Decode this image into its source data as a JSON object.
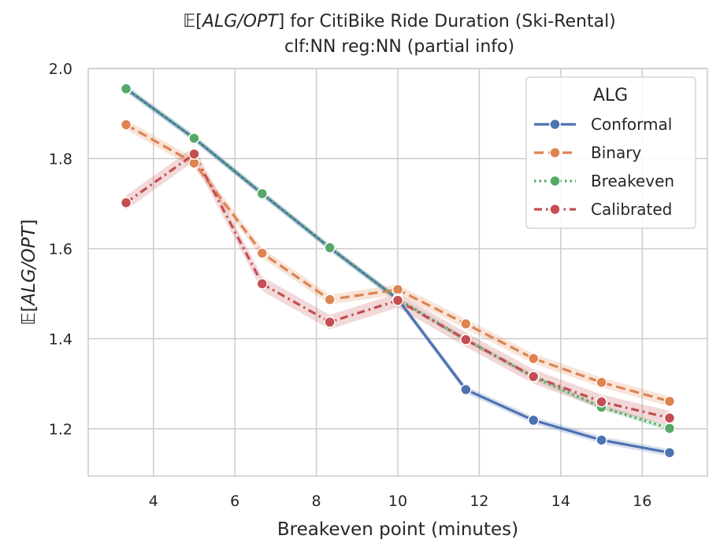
{
  "chart_data": {
    "type": "line",
    "title_main": "for CitiBike Ride Duration (Ski-Rental)",
    "title_line2": "clf:NN reg:NN (partial info)",
    "expectation_symbol": "𝔼",
    "metric": "ALG/OPT",
    "xlabel": "Breakeven point (minutes)",
    "ylabel_metric": "ALG/OPT",
    "x": [
      3.33,
      5.0,
      6.67,
      8.33,
      10.0,
      11.67,
      13.33,
      15.0,
      16.67
    ],
    "xlim": [
      2.4,
      17.6
    ],
    "ylim": [
      1.095,
      2.0
    ],
    "xticks": [
      4,
      6,
      8,
      10,
      12,
      14,
      16
    ],
    "yticks": [
      1.2,
      1.4,
      1.6,
      1.8,
      2.0
    ],
    "xtick_labels": [
      "4",
      "6",
      "8",
      "10",
      "12",
      "14",
      "16"
    ],
    "ytick_labels": [
      "1.2",
      "1.4",
      "1.6",
      "1.8",
      "2.0"
    ],
    "grid": true,
    "legend": {
      "title": "ALG",
      "position": "top-right"
    },
    "series": [
      {
        "name": "Conformal",
        "color": "#4c72b0",
        "dash": "solid",
        "values": [
          1.955,
          1.845,
          1.722,
          1.602,
          1.488,
          1.287,
          1.219,
          1.175,
          1.147
        ],
        "band": 0.008
      },
      {
        "name": "Binary",
        "color": "#dd8452",
        "dash": "dashed",
        "values": [
          1.875,
          1.79,
          1.59,
          1.487,
          1.509,
          1.433,
          1.356,
          1.303,
          1.261
        ],
        "band": 0.011
      },
      {
        "name": "Breakeven",
        "color": "#55a868",
        "dash": "dotted",
        "values": [
          1.955,
          1.845,
          1.722,
          1.602,
          1.488,
          1.398,
          1.315,
          1.248,
          1.201
        ],
        "band": 0.006
      },
      {
        "name": "Calibrated",
        "color": "#c44e52",
        "dash": "dashdot",
        "values": [
          1.702,
          1.81,
          1.522,
          1.437,
          1.485,
          1.398,
          1.316,
          1.26,
          1.224
        ],
        "band": 0.016
      }
    ]
  }
}
